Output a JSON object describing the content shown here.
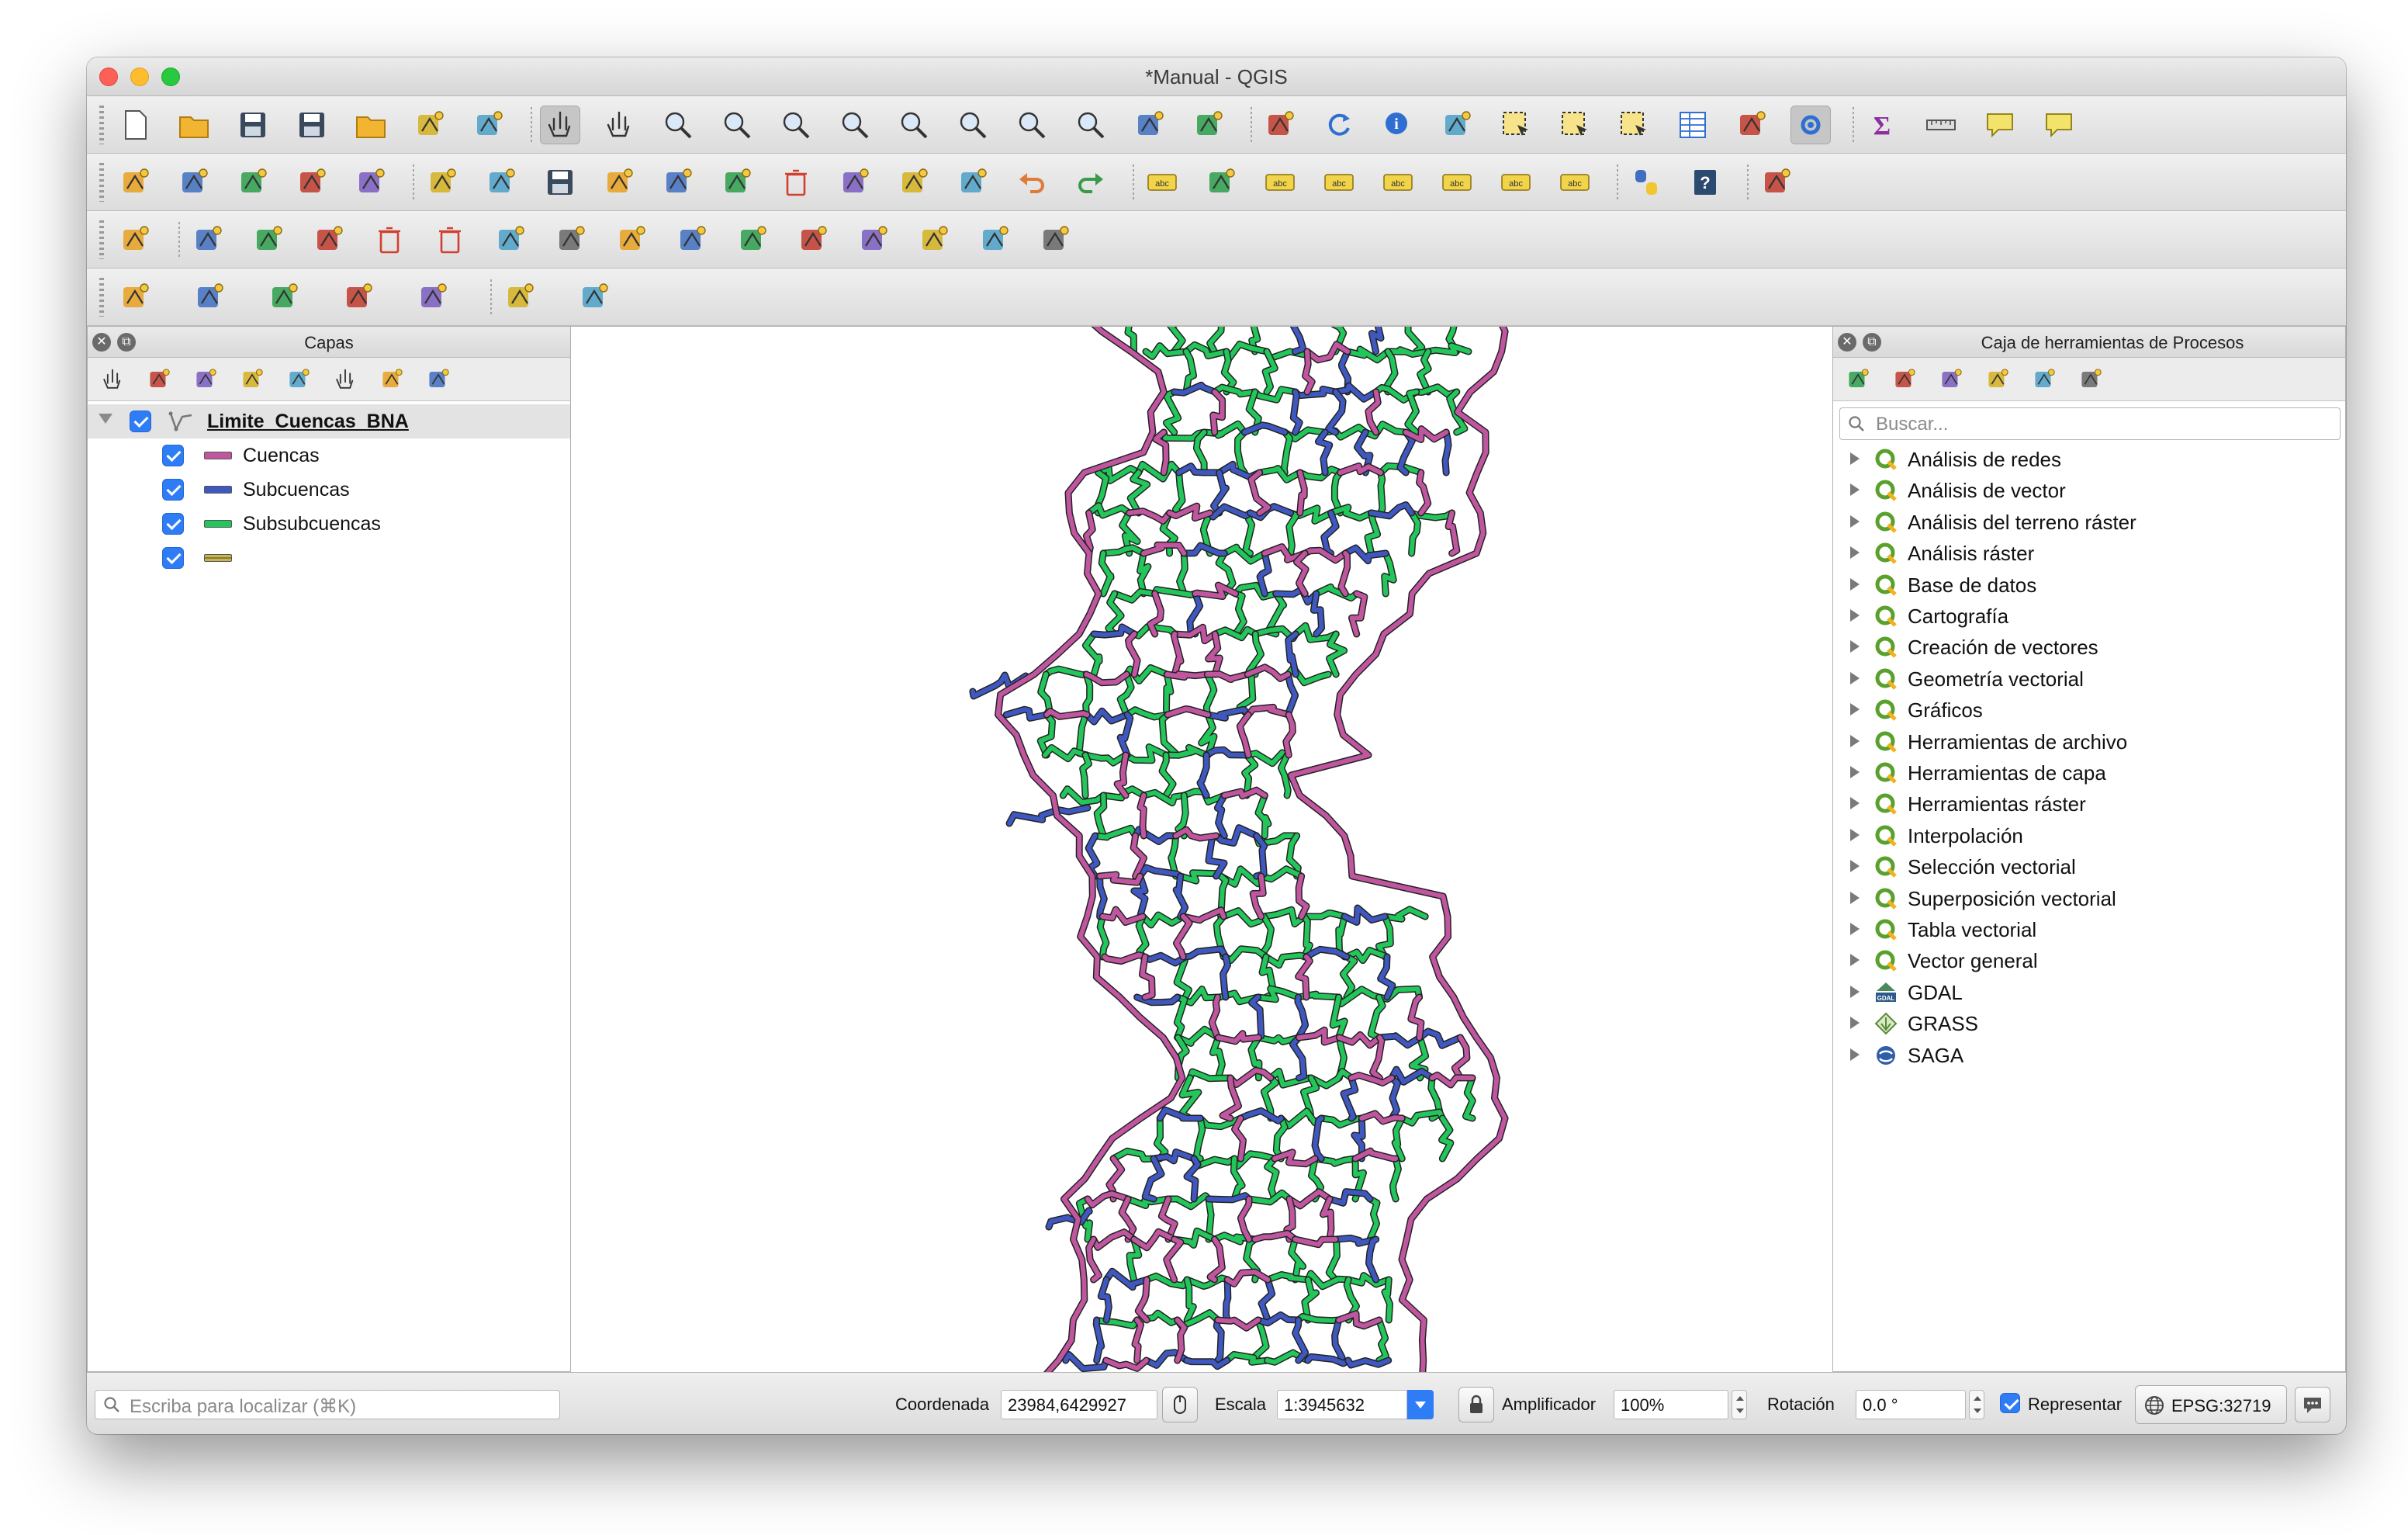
{
  "window": {
    "title": "*Manual - QGIS"
  },
  "toolbars": {
    "row1": [
      "new-project-icon",
      "open-project-icon",
      "save-project-icon",
      "save-as-icon",
      "open-layout-icon",
      "layout-manager-icon",
      "style-manager-icon",
      "pan-icon",
      "pan-to-selection-icon",
      "zoom-in-icon",
      "zoom-out-icon",
      "zoom-native-icon",
      "zoom-full-icon",
      "zoom-to-selection-icon",
      "zoom-to-layer-icon",
      "zoom-last-icon",
      "zoom-next-icon",
      "new-bookmark-icon",
      "show-bookmarks-icon",
      "map-tips-icon",
      "refresh-icon",
      "identify-icon",
      "run-action-icon",
      "select-features-icon",
      "select-by-value-icon",
      "deselect-icon",
      "attribute-table-icon",
      "field-calculator-icon",
      "processing-toolbox-icon",
      "statistics-icon",
      "measure-icon",
      "annotation-icon",
      "text-annotation-icon"
    ],
    "row2": [
      "data-source-manager-icon",
      "new-geopackage-icon",
      "new-shapefile-icon",
      "new-temporary-layer-icon",
      "virtual-layer-icon",
      "current-edits-icon",
      "toggle-editing-icon",
      "save-edits-icon",
      "digitize-icon",
      "vertex-tool-icon",
      "modify-attributes-icon",
      "delete-selected-icon",
      "cut-features-icon",
      "copy-features-icon",
      "paste-features-icon",
      "undo-icon",
      "redo-icon",
      "label-toolbar-icon",
      "diagram-icon",
      "highlight-pinned-labels-icon",
      "pin-labels-icon",
      "show-hide-labels-icon",
      "move-label-icon",
      "rotate-label-icon",
      "change-label-icon",
      "python-console-icon",
      "help-icon",
      "plugin-icon"
    ],
    "row3": [
      "enable-snapping-icon",
      "add-ring-icon",
      "fill-ring-icon",
      "add-part-icon",
      "delete-ring-icon",
      "delete-part-icon",
      "reshape-icon",
      "offset-curve-icon",
      "split-features-icon",
      "split-parts-icon",
      "merge-features-icon",
      "merge-attributes-icon",
      "rotate-point-symbols-icon",
      "simplify-icon",
      "reverse-line-icon",
      "trim-extend-icon"
    ],
    "row4": [
      "georef-point-icon",
      "georef-circle-icon",
      "georef-ellipse-icon",
      "georef-rectangle-icon",
      "georef-polygon-icon",
      "vector-tool-icon",
      "raster-tool-icon"
    ]
  },
  "layers_panel": {
    "title": "Capas",
    "group": {
      "name": "Limite_Cuencas_BNA"
    },
    "layers": [
      {
        "name": "Cuencas",
        "color": "#c0569f"
      },
      {
        "name": "Subcuencas",
        "color": "#3f58c0"
      },
      {
        "name": "Subsubcuencas",
        "color": "#22c65a"
      },
      {
        "name": "",
        "color": "#c9b451"
      }
    ],
    "tools": [
      "style-panel-icon",
      "add-group-icon",
      "manage-map-themes-icon",
      "filter-legend-icon",
      "filter-expression-icon",
      "expand-all-icon",
      "collapse-all-icon",
      "remove-layer-icon"
    ]
  },
  "processing_panel": {
    "title": "Caja de herramientas de Procesos",
    "search_placeholder": "Buscar...",
    "tools": [
      "models-icon",
      "scripts-icon",
      "history-icon",
      "results-icon",
      "edit-features-icon",
      "options-icon"
    ],
    "providers": [
      {
        "name": "Análisis de redes",
        "icon": "qgis-icon"
      },
      {
        "name": "Análisis de vector",
        "icon": "qgis-icon"
      },
      {
        "name": "Análisis del terreno ráster",
        "icon": "qgis-icon"
      },
      {
        "name": "Análisis ráster",
        "icon": "qgis-icon"
      },
      {
        "name": "Base de datos",
        "icon": "qgis-icon"
      },
      {
        "name": "Cartografía",
        "icon": "qgis-icon"
      },
      {
        "name": "Creación de vectores",
        "icon": "qgis-icon"
      },
      {
        "name": "Geometría vectorial",
        "icon": "qgis-icon"
      },
      {
        "name": "Gráficos",
        "icon": "qgis-icon"
      },
      {
        "name": "Herramientas de archivo",
        "icon": "qgis-icon"
      },
      {
        "name": "Herramientas de capa",
        "icon": "qgis-icon"
      },
      {
        "name": "Herramientas ráster",
        "icon": "qgis-icon"
      },
      {
        "name": "Interpolación",
        "icon": "qgis-icon"
      },
      {
        "name": "Selección vectorial",
        "icon": "qgis-icon"
      },
      {
        "name": "Superposición vectorial",
        "icon": "qgis-icon"
      },
      {
        "name": "Tabla vectorial",
        "icon": "qgis-icon"
      },
      {
        "name": "Vector general",
        "icon": "qgis-icon"
      },
      {
        "name": "GDAL",
        "icon": "gdal-icon"
      },
      {
        "name": "GRASS",
        "icon": "grass-icon"
      },
      {
        "name": "SAGA",
        "icon": "saga-icon"
      }
    ]
  },
  "statusbar": {
    "locator_placeholder": "Escriba para localizar (⌘K)",
    "coordinate_label": "Coordenada",
    "coordinate_value": "23984,6429927",
    "scale_label": "Escala",
    "scale_value": "1:3945632",
    "magnifier_label": "Amplificador",
    "magnifier_value": "100%",
    "rotation_label": "Rotación",
    "rotation_value": "0.0 °",
    "render_label": "Representar",
    "crs_label": "EPSG:32719"
  },
  "map": {
    "colors": {
      "cuencas": "#c0569f",
      "subcuencas": "#3f58c0",
      "subsubcuencas": "#22c65a",
      "outline": "#222222"
    }
  }
}
